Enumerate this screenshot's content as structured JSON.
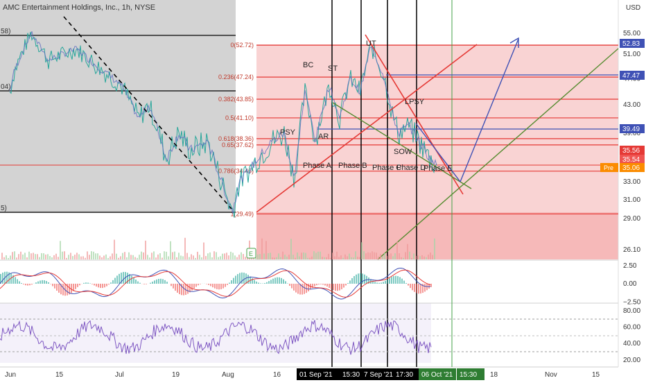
{
  "header": {
    "title": "AMC Entertainment Holdings, Inc., 1h, NYSE",
    "currency": "USD",
    "left_clip_labels": [
      "58)",
      "04)",
      "5)"
    ]
  },
  "chart_data": [
    {
      "type": "line",
      "name": "price",
      "y_ticks": [
        55.0,
        51.0,
        47.0,
        43.0,
        39.0,
        35.0,
        33.0,
        31.0,
        29.0,
        26.1
      ],
      "ylim": [
        24.5,
        57.5
      ],
      "x_ticks": [
        "Jun",
        "15",
        "Jul",
        "19",
        "Aug",
        "16",
        "18",
        "Nov",
        "15"
      ],
      "x_highlight": [
        {
          "label": "01 Sep '21",
          "color": "#000000"
        },
        {
          "label": "15:30",
          "color": "#000000"
        },
        {
          "label": "7 Sep '21",
          "color": "#000000"
        },
        {
          "label": "17:30",
          "color": "#000000"
        },
        {
          "label": "06 Oct '21",
          "color": "#2e7d32"
        },
        {
          "label": "15:30",
          "color": "#2e7d32"
        }
      ],
      "fib_levels": [
        {
          "ratio": "0",
          "price": 52.72,
          "label": "0(52.72)"
        },
        {
          "ratio": "0.236",
          "price": 47.24,
          "label": "0.236(47.24)"
        },
        {
          "ratio": "0.382",
          "price": 43.85,
          "label": "0.382(43.85)"
        },
        {
          "ratio": "0.5",
          "price": 41.1,
          "label": "0.5(41.10)"
        },
        {
          "ratio": "0.618",
          "price": 38.36,
          "label": "0.618(38.36)"
        },
        {
          "ratio": "0.65",
          "price": 37.62,
          "label": "0.65(37.62)"
        },
        {
          "ratio": "0.786",
          "price": 34.46,
          "label": "0.786(34.46)"
        },
        {
          "ratio": "1",
          "price": 29.49,
          "label": "1(29.49)"
        }
      ],
      "price_badges": [
        {
          "text": "52.83",
          "price": 52.83,
          "color": "#3f51b5"
        },
        {
          "text": "47.47",
          "price": 47.47,
          "color": "#3f51b5"
        },
        {
          "text": "39.49",
          "price": 39.49,
          "color": "#3f51b5"
        },
        {
          "text": "35.56",
          "price": 35.56,
          "color": "#e53935"
        },
        {
          "text": "35.54",
          "price": 35.54,
          "color": "#ef5350"
        },
        {
          "text": "35.06",
          "price": 35.06,
          "color": "#fb8c00",
          "tag": "Pre"
        }
      ],
      "annotations": [
        "PSY",
        "BC",
        "ST",
        "UT",
        "AR",
        "LPSY",
        "SOW",
        "Phase A",
        "Phase B",
        "Phase C",
        "Phase D",
        "Phase E",
        "E"
      ]
    },
    {
      "type": "line",
      "name": "macd",
      "y_ticks": [
        2.5,
        0.0,
        -2.5
      ],
      "ylim": [
        -3.2,
        3.2
      ]
    },
    {
      "type": "line",
      "name": "rsi",
      "y_ticks": [
        80.0,
        60.0,
        40.0,
        20.0
      ],
      "ylim": [
        12,
        88
      ],
      "band": [
        30,
        70
      ]
    }
  ]
}
